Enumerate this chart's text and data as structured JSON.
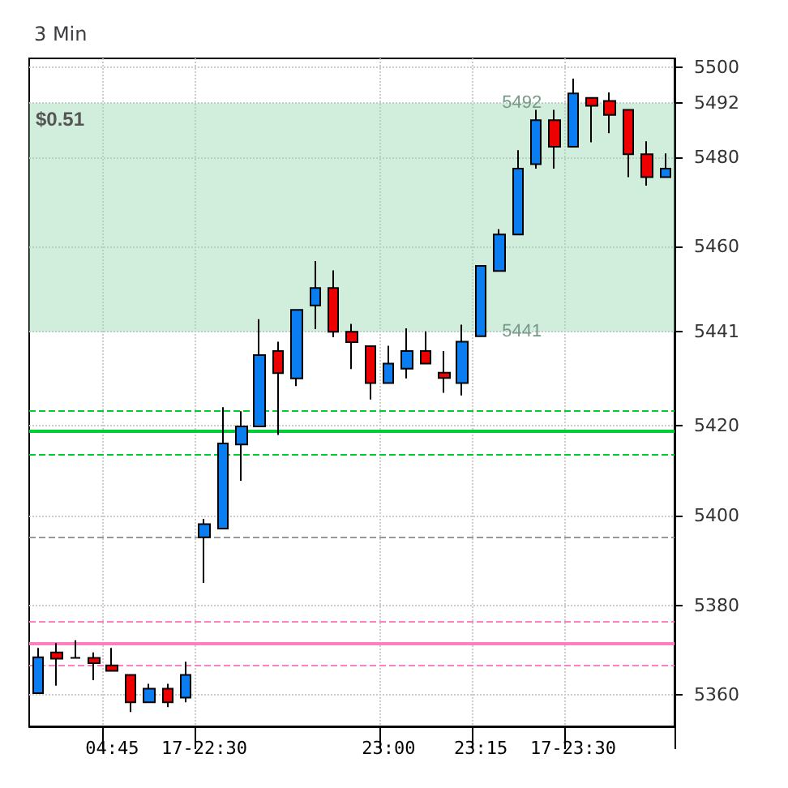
{
  "chart_data": {
    "type": "candlestick",
    "title": "3 Min",
    "categories": [
      null,
      null,
      null,
      null,
      "04:45",
      null,
      null,
      null,
      null,
      "17-22:30",
      null,
      null,
      null,
      null,
      null,
      null,
      null,
      null,
      null,
      "23:00",
      null,
      null,
      null,
      null,
      "23:15",
      null,
      null,
      null,
      null,
      "17-23:30",
      null,
      null,
      null,
      null,
      null
    ],
    "ohlc": [
      [
        5360.4,
        5370.5,
        5360.4,
        5368.4
      ],
      [
        5369.5,
        5371.6,
        5362.1,
        5368.1
      ],
      [
        5368.3,
        5372.2,
        5368.3,
        5368.3
      ],
      [
        5368.3,
        5369.5,
        5363.3,
        5367.1
      ],
      [
        5366.6,
        5370.5,
        5365.4,
        5365.4
      ],
      [
        5364.5,
        5364.5,
        5356.2,
        5358.4
      ],
      [
        5358.4,
        5362.5,
        5358.4,
        5361.4
      ],
      [
        5361.4,
        5362.5,
        5357.3,
        5358.4
      ],
      [
        5359.4,
        5367.4,
        5358.4,
        5364.5
      ],
      [
        5395.2,
        5399.3,
        5385.0,
        5398.1
      ],
      [
        5397.1,
        5424.2,
        5397.1,
        5416.1
      ],
      [
        5415.9,
        5423.3,
        5407.8,
        5419.9
      ],
      [
        5419.9,
        5443.8,
        5419.9,
        5435.8
      ],
      [
        5436.7,
        5438.8,
        5418.0,
        5431.8
      ],
      [
        5430.6,
        5445.9,
        5428.9,
        5445.9
      ],
      [
        5446.9,
        5456.8,
        5441.6,
        5450.8
      ],
      [
        5450.8,
        5454.7,
        5439.8,
        5441.0
      ],
      [
        5441.0,
        5442.8,
        5432.7,
        5438.7
      ],
      [
        5437.8,
        5437.8,
        5425.9,
        5429.6
      ],
      [
        5429.6,
        5437.9,
        5429.6,
        5433.9
      ],
      [
        5432.8,
        5441.8,
        5430.6,
        5436.7
      ],
      [
        5436.7,
        5441.1,
        5433.9,
        5433.9
      ],
      [
        5431.9,
        5436.7,
        5427.4,
        5430.7
      ],
      [
        5429.6,
        5442.6,
        5426.8,
        5438.8
      ],
      [
        5440.0,
        5455.7,
        5440.0,
        5455.7
      ],
      [
        5454.6,
        5463.9,
        5454.6,
        5462.7
      ],
      [
        5462.7,
        5481.5,
        5462.7,
        5477.4
      ],
      [
        5478.4,
        5490.5,
        5477.4,
        5488.2
      ],
      [
        5488.2,
        5490.5,
        5477.4,
        5482.3
      ],
      [
        5482.3,
        5497.5,
        5482.3,
        5494.2
      ],
      [
        5493.2,
        5493.2,
        5483.3,
        5491.4
      ],
      [
        5492.5,
        5494.4,
        5485.3,
        5489.4
      ],
      [
        5490.5,
        5490.5,
        5475.5,
        5480.6
      ],
      [
        5480.6,
        5483.5,
        5473.6,
        5475.5
      ],
      [
        5475.5,
        5480.8,
        5475.5,
        5477.4
      ]
    ],
    "ylim": [
      5353,
      5502
    ],
    "yticks": [
      5360,
      5380,
      5400,
      5420,
      5441,
      5460,
      5480,
      5492,
      5500
    ],
    "grid": true,
    "ref_lines": [
      {
        "axis": "y",
        "value": 5423.6,
        "color": "#00cc33",
        "line_style": "dashed"
      },
      {
        "axis": "y",
        "value": 5419,
        "color": "#00cc33",
        "line_style": "solid"
      },
      {
        "axis": "y",
        "value": 5413.8,
        "color": "#00cc33",
        "line_style": "dashed"
      },
      {
        "axis": "y",
        "value": 5395.3,
        "color": "#999999",
        "line_style": "dashed"
      },
      {
        "axis": "y",
        "value": 5376.5,
        "color": "#ff80c0",
        "line_style": "dashed"
      },
      {
        "axis": "y",
        "value": 5371.7,
        "color": "#ff80c0",
        "line_style": "solid"
      },
      {
        "axis": "y",
        "value": 5366.6,
        "color": "#ff80c0",
        "line_style": "dashed"
      }
    ],
    "bands": [
      {
        "axis": "y",
        "from": 5441,
        "to": 5492,
        "label": "$0.51",
        "color": "#99d9b3"
      }
    ],
    "annotations": [
      {
        "text": "5492",
        "x": "23:15",
        "y": 5492
      },
      {
        "text": "5441",
        "x": "23:15",
        "y": 5441
      }
    ]
  }
}
